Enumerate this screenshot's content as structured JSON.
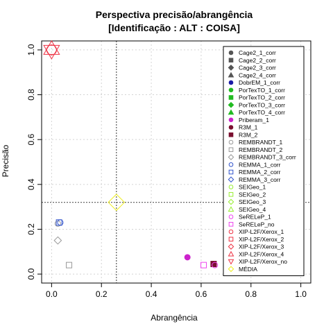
{
  "chart_data": {
    "type": "scatter",
    "title": "Perspectiva precisão/abrangência",
    "subtitle": "[Identificação : ALT : COISA]",
    "xlabel": "Abrangência",
    "ylabel": "Precisão",
    "xlim": [
      0,
      1
    ],
    "ylim": [
      0,
      1
    ],
    "xticks": [
      "0.0",
      "0.2",
      "0.4",
      "0.6",
      "0.8",
      "1.0"
    ],
    "yticks": [
      "0.0",
      "0.2",
      "0.4",
      "0.6",
      "0.8",
      "1.0"
    ],
    "grid": true,
    "legend_position": "right",
    "reference_lines": {
      "x": 0.26,
      "y": 0.32
    },
    "series": [
      {
        "name": "Cage2_1_corr",
        "marker": "circle",
        "color": "#555555",
        "filled": true,
        "points": []
      },
      {
        "name": "Cage2_2_corr",
        "marker": "square",
        "color": "#555555",
        "filled": true,
        "points": []
      },
      {
        "name": "Cage2_3_corr",
        "marker": "diamond",
        "color": "#555555",
        "filled": true,
        "points": []
      },
      {
        "name": "Cage2_4_corr",
        "marker": "triangle",
        "color": "#555555",
        "filled": true,
        "points": []
      },
      {
        "name": "DobrEM_1_corr",
        "marker": "circle",
        "color": "#1a1aa6",
        "filled": true,
        "points": []
      },
      {
        "name": "PorTexTO_1_corr",
        "marker": "circle",
        "color": "#22bb22",
        "filled": true,
        "points": []
      },
      {
        "name": "PorTexTO_2_corr",
        "marker": "square",
        "color": "#22bb22",
        "filled": true,
        "points": []
      },
      {
        "name": "PorTexTO_3_corr",
        "marker": "diamond",
        "color": "#22bb22",
        "filled": true,
        "points": []
      },
      {
        "name": "PorTexTO_4_corr",
        "marker": "triangle",
        "color": "#22bb22",
        "filled": true,
        "points": []
      },
      {
        "name": "Priberam_1",
        "marker": "circle",
        "color": "#cc22cc",
        "filled": true,
        "points": [
          [
            0.545,
            0.075
          ]
        ]
      },
      {
        "name": "R3M_1",
        "marker": "circle",
        "color": "#7a1030",
        "filled": true,
        "points": [
          [
            0.65,
            0.045
          ]
        ]
      },
      {
        "name": "R3M_2",
        "marker": "square",
        "color": "#7a1030",
        "filled": true,
        "points": [
          [
            0.65,
            0.045
          ]
        ]
      },
      {
        "name": "REMBRANDT_1",
        "marker": "circle",
        "color": "#999999",
        "filled": false,
        "points": [
          [
            0.025,
            0.225
          ]
        ]
      },
      {
        "name": "REMBRANDT_2",
        "marker": "square",
        "color": "#999999",
        "filled": false,
        "points": [
          [
            0.07,
            0.04
          ]
        ]
      },
      {
        "name": "REMBRANDT_3_corr",
        "marker": "diamond",
        "color": "#999999",
        "filled": false,
        "points": [
          [
            0.025,
            0.15
          ]
        ]
      },
      {
        "name": "REMMA_1_corr",
        "marker": "circle",
        "color": "#3355cc",
        "filled": false,
        "points": [
          [
            0.035,
            0.23
          ]
        ]
      },
      {
        "name": "REMMA_2_corr",
        "marker": "square",
        "color": "#3355cc",
        "filled": false,
        "points": [
          [
            0.03,
            0.23
          ]
        ]
      },
      {
        "name": "REMMA_3_corr",
        "marker": "diamond",
        "color": "#3355cc",
        "filled": false,
        "points": []
      },
      {
        "name": "SEIGeo_1",
        "marker": "circle",
        "color": "#99ee33",
        "filled": false,
        "points": []
      },
      {
        "name": "SEIGeo_2",
        "marker": "square",
        "color": "#99ee33",
        "filled": false,
        "points": []
      },
      {
        "name": "SEIGeo_3",
        "marker": "diamond",
        "color": "#99ee33",
        "filled": false,
        "points": []
      },
      {
        "name": "SEIGeo_4",
        "marker": "triangle",
        "color": "#99ee33",
        "filled": false,
        "points": []
      },
      {
        "name": "SeRELeP_1",
        "marker": "circle",
        "color": "#ee44ee",
        "filled": false,
        "points": [
          [
            0.655,
            0.04
          ]
        ]
      },
      {
        "name": "SeRELeP_no",
        "marker": "square",
        "color": "#ee44ee",
        "filled": false,
        "points": [
          [
            0.61,
            0.04
          ]
        ]
      },
      {
        "name": "XIP-L2F/Xerox_1",
        "marker": "circle",
        "color": "#ee3344",
        "filled": false,
        "points": []
      },
      {
        "name": "XIP-L2F/Xerox_2",
        "marker": "square",
        "color": "#ee3344",
        "filled": false,
        "points": []
      },
      {
        "name": "XIP-L2F/Xerox_3",
        "marker": "diamond",
        "color": "#ee3344",
        "filled": false,
        "points": []
      },
      {
        "name": "XIP-L2F/Xerox_4",
        "marker": "triangle",
        "color": "#ee3344",
        "filled": false,
        "points": []
      },
      {
        "name": "XIP-L2F/Xerox_no",
        "marker": "triangle-down",
        "color": "#ee3344",
        "filled": false,
        "points": []
      },
      {
        "name": "MÉDIA",
        "marker": "diamond",
        "color": "#eeee22",
        "filled": false,
        "points": [
          [
            0.26,
            0.32
          ]
        ]
      }
    ],
    "extra_marks": [
      {
        "note": "ideal",
        "marker": "star",
        "color": "#ee3344",
        "x": 0.0,
        "y": 1.0
      }
    ]
  }
}
